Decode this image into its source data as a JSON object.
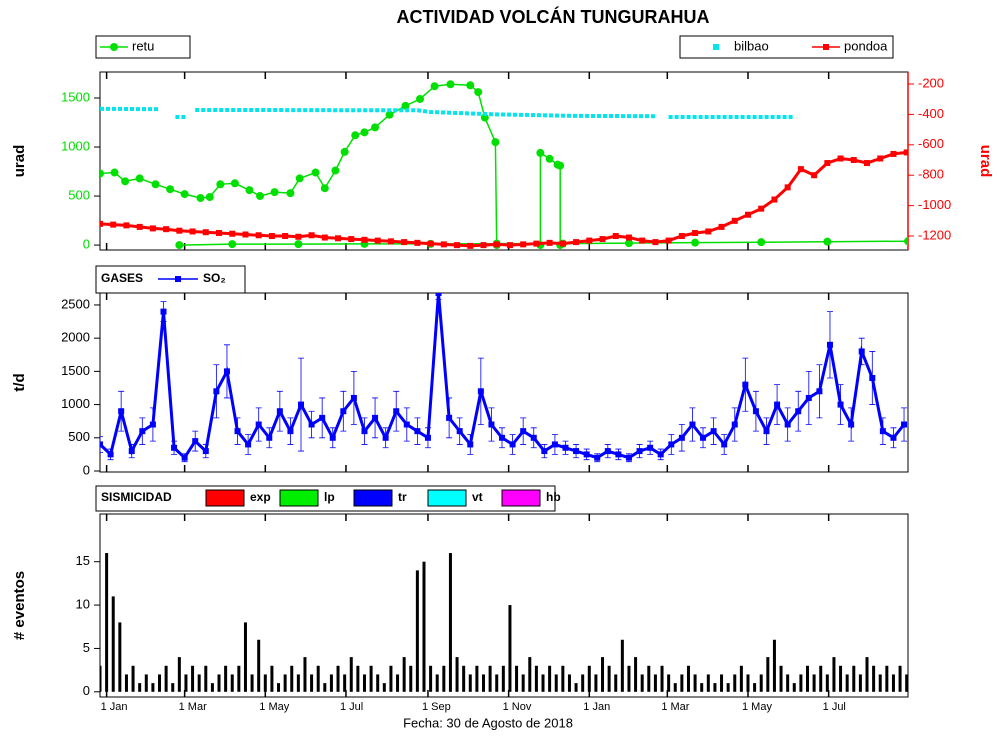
{
  "chart_data": [
    {
      "type": "line",
      "title": "ACTIVIDAD VOLCÁN TUNGURAHUA",
      "y_label": "urad",
      "y2_label": "urad",
      "xlim": [
        0,
        611
      ],
      "ylim": [
        -50,
        1765
      ],
      "yticks": [
        0,
        500,
        1000,
        1500
      ],
      "ycolor": "#00dd00",
      "y2lim": [
        -1292,
        -121
      ],
      "y2ticks": [
        -1200,
        -1000,
        -800,
        -600,
        -400,
        -200
      ],
      "y2color": "#ff0000",
      "series": [
        {
          "name": "retu",
          "color": "#00e000",
          "marker": "circle",
          "x": [
            0,
            11,
            19,
            30,
            42,
            53,
            64,
            76,
            83,
            91,
            102,
            113,
            121,
            132,
            144,
            151,
            163,
            170,
            178,
            185,
            193,
            200,
            208,
            219,
            231,
            242,
            253,
            265,
            280,
            286,
            291,
            299,
            300,
            310,
            333,
            333,
            340,
            346,
            348,
            348,
            350,
            60,
            100,
            150,
            200,
            250,
            300,
            350,
            400,
            450,
            500,
            550,
            611
          ],
          "values": [
            730,
            740,
            650,
            680,
            620,
            570,
            520,
            480,
            490,
            620,
            630,
            560,
            500,
            540,
            530,
            680,
            740,
            580,
            760,
            950,
            1120,
            1150,
            1200,
            1330,
            1420,
            1490,
            1620,
            1640,
            1630,
            1560,
            1300,
            1050,
            0,
            null,
            0,
            940,
            880,
            820,
            810,
            0,
            null,
            0,
            10,
            10,
            12,
            12,
            15,
            15,
            20,
            25,
            30,
            35,
            40
          ]
        },
        {
          "name": "bilbao",
          "color": "#00e5ee",
          "axis": "y2",
          "marker": "dot",
          "x": [
            0,
            15,
            30,
            45,
            46,
            57,
            66,
            67,
            72,
            120,
            180,
            240,
            250,
            300,
            360,
            420,
            424,
            430,
            480,
            525
          ],
          "values": [
            -364,
            -364,
            -365,
            -365,
            null,
            -417,
            -417,
            null,
            -371,
            -371,
            -372,
            -373,
            -384,
            -400,
            -410,
            -412,
            null,
            -417,
            -417,
            -417
          ]
        },
        {
          "name": "pondoa",
          "color": "#ff0000",
          "axis": "y2",
          "marker": "square",
          "x": [
            0,
            10,
            20,
            30,
            40,
            50,
            60,
            70,
            80,
            90,
            100,
            110,
            120,
            130,
            140,
            150,
            160,
            170,
            180,
            190,
            200,
            210,
            220,
            230,
            240,
            250,
            260,
            270,
            280,
            290,
            300,
            310,
            320,
            330,
            340,
            350,
            360,
            370,
            380,
            390,
            400,
            410,
            420,
            430,
            440,
            450,
            460,
            470,
            480,
            490,
            500,
            510,
            520,
            530,
            540,
            550,
            560,
            570,
            580,
            590,
            600,
            610
          ],
          "values": [
            -1120,
            -1125,
            -1130,
            -1140,
            -1150,
            -1155,
            -1165,
            -1170,
            -1175,
            -1180,
            -1185,
            -1190,
            -1195,
            -1200,
            -1200,
            -1205,
            -1195,
            -1210,
            -1215,
            -1220,
            -1225,
            -1230,
            -1235,
            -1240,
            -1245,
            -1250,
            -1255,
            -1260,
            -1265,
            -1260,
            -1255,
            -1260,
            -1255,
            -1250,
            -1245,
            -1250,
            -1240,
            -1230,
            -1220,
            -1200,
            -1210,
            -1230,
            -1240,
            -1230,
            -1200,
            -1180,
            -1170,
            -1140,
            -1100,
            -1060,
            -1020,
            -960,
            -880,
            -760,
            -800,
            -720,
            -690,
            -700,
            -720,
            -690,
            -660,
            -650
          ]
        }
      ]
    },
    {
      "type": "line",
      "legend_title": "GASES",
      "y_label": "t/d",
      "xlim": [
        0,
        611
      ],
      "ylim": [
        -15,
        2680
      ],
      "yticks": [
        0,
        500,
        1000,
        1500,
        2000,
        2500
      ],
      "series": [
        {
          "name": "SO₂",
          "color": "#0000ff",
          "marker": "square",
          "x": [
            0,
            8,
            16,
            24,
            32,
            40,
            48,
            56,
            64,
            72,
            80,
            88,
            96,
            104,
            112,
            120,
            128,
            136,
            144,
            152,
            160,
            168,
            176,
            184,
            192,
            200,
            208,
            216,
            224,
            232,
            240,
            248,
            256,
            264,
            272,
            280,
            288,
            296,
            304,
            312,
            320,
            328,
            336,
            344,
            352,
            360,
            368,
            376,
            384,
            392,
            400,
            408,
            416,
            424,
            432,
            440,
            448,
            456,
            464,
            472,
            480,
            488,
            496,
            504,
            512,
            520,
            528,
            536,
            544,
            552,
            560,
            568,
            576,
            584,
            592,
            600,
            608
          ],
          "values": [
            400,
            250,
            900,
            300,
            600,
            700,
            2400,
            350,
            200,
            450,
            300,
            1200,
            1500,
            600,
            400,
            700,
            500,
            900,
            600,
            1000,
            700,
            800,
            500,
            900,
            1100,
            600,
            800,
            500,
            900,
            700,
            600,
            500,
            2680,
            800,
            600,
            400,
            1200,
            700,
            500,
            400,
            600,
            500,
            300,
            400,
            350,
            300,
            250,
            200,
            300,
            250,
            200,
            300,
            350,
            250,
            400,
            500,
            700,
            500,
            600,
            400,
            700,
            1300,
            900,
            600,
            1000,
            700,
            900,
            1100,
            1200,
            1900,
            1000,
            700,
            1800,
            1400,
            600,
            500,
            700
          ],
          "errors": [
            120,
            80,
            300,
            100,
            200,
            250,
            150,
            100,
            60,
            150,
            100,
            400,
            400,
            200,
            150,
            250,
            150,
            300,
            200,
            700,
            200,
            300,
            150,
            300,
            400,
            200,
            300,
            150,
            300,
            250,
            200,
            150,
            100,
            300,
            200,
            150,
            500,
            250,
            150,
            150,
            200,
            150,
            100,
            150,
            100,
            100,
            80,
            60,
            100,
            80,
            60,
            100,
            100,
            80,
            150,
            200,
            250,
            150,
            200,
            150,
            250,
            400,
            300,
            200,
            300,
            250,
            300,
            400,
            400,
            500,
            300,
            250,
            200,
            400,
            200,
            150,
            250
          ]
        }
      ]
    },
    {
      "type": "bar",
      "legend_title": "SISMICIDAD",
      "y_label": "# eventos",
      "x_label": "Fecha: 30 de Agosto de 2018",
      "legend": [
        {
          "name": "exp",
          "color": "#ff0000"
        },
        {
          "name": "lp",
          "color": "#00ee00"
        },
        {
          "name": "tr",
          "color": "#0000ff"
        },
        {
          "name": "vt",
          "color": "#00ffff"
        },
        {
          "name": "hb",
          "color": "#ff00ff"
        }
      ],
      "xlim": [
        0,
        611
      ],
      "ylim": [
        -0.6,
        20.5
      ],
      "yticks": [
        0,
        5,
        10,
        15
      ],
      "xticks": [
        {
          "value": 5,
          "label": "1 Jan"
        },
        {
          "value": 64,
          "label": "1 Mar"
        },
        {
          "value": 125,
          "label": "1 May"
        },
        {
          "value": 186,
          "label": "1 Jul"
        },
        {
          "value": 248,
          "label": "1 Sep"
        },
        {
          "value": 309,
          "label": "1 Nov"
        },
        {
          "value": 370,
          "label": "1 Jan"
        },
        {
          "value": 429,
          "label": "1 Mar"
        },
        {
          "value": 490,
          "label": "1 May"
        },
        {
          "value": 551,
          "label": "1 Jul"
        }
      ],
      "color": "#000000",
      "x": [
        0,
        5,
        10,
        15,
        20,
        25,
        30,
        35,
        40,
        45,
        50,
        55,
        60,
        65,
        70,
        75,
        80,
        85,
        90,
        95,
        100,
        105,
        110,
        115,
        120,
        125,
        130,
        135,
        140,
        145,
        150,
        155,
        160,
        165,
        170,
        175,
        180,
        185,
        190,
        195,
        200,
        205,
        210,
        215,
        220,
        225,
        230,
        235,
        240,
        245,
        250,
        255,
        260,
        265,
        270,
        275,
        280,
        285,
        290,
        295,
        300,
        305,
        310,
        315,
        320,
        325,
        330,
        335,
        340,
        345,
        350,
        355,
        360,
        365,
        370,
        375,
        380,
        385,
        390,
        395,
        400,
        405,
        410,
        415,
        420,
        425,
        430,
        435,
        440,
        445,
        450,
        455,
        460,
        465,
        470,
        475,
        480,
        485,
        490,
        495,
        500,
        505,
        510,
        515,
        520,
        525,
        530,
        535,
        540,
        545,
        550,
        555,
        560,
        565,
        570,
        575,
        580,
        585,
        590,
        595,
        600,
        605,
        610
      ],
      "values": [
        3,
        16,
        11,
        8,
        2,
        3,
        1,
        2,
        1,
        2,
        3,
        1,
        4,
        2,
        3,
        2,
        3,
        1,
        2,
        3,
        2,
        3,
        8,
        2,
        6,
        2,
        3,
        1,
        2,
        3,
        2,
        4,
        2,
        3,
        1,
        2,
        3,
        2,
        4,
        3,
        2,
        3,
        2,
        1,
        3,
        2,
        4,
        3,
        14,
        15,
        3,
        2,
        3,
        16,
        4,
        3,
        2,
        3,
        2,
        3,
        2,
        3,
        10,
        3,
        2,
        4,
        3,
        2,
        3,
        2,
        3,
        2,
        1,
        2,
        3,
        2,
        4,
        3,
        2,
        6,
        3,
        4,
        2,
        3,
        2,
        3,
        2,
        1,
        2,
        3,
        2,
        1,
        2,
        1,
        2,
        1,
        2,
        3,
        2,
        1,
        2,
        4,
        6,
        3,
        2,
        1,
        2,
        3,
        2,
        3,
        2,
        4,
        3,
        2,
        3,
        2,
        4,
        3,
        2,
        3,
        2,
        3,
        2
      ]
    }
  ]
}
